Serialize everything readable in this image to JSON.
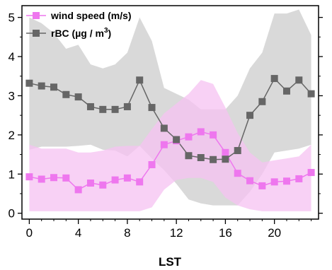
{
  "chart_data": {
    "type": "line",
    "xlabel": "LST",
    "ylabel": "",
    "xlim": [
      -0.6,
      23.6
    ],
    "ylim": [
      -0.15,
      5.3
    ],
    "x_ticks": [
      0,
      4,
      8,
      12,
      16,
      20
    ],
    "y_ticks": [
      0,
      1,
      2,
      3,
      4,
      5
    ],
    "grid": false,
    "legend_position": "top-left",
    "x": [
      0,
      1,
      2,
      3,
      4,
      5,
      6,
      7,
      8,
      9,
      10,
      11,
      12,
      13,
      14,
      15,
      16,
      17,
      18,
      19,
      20,
      21,
      22,
      23
    ],
    "series": [
      {
        "name": "wind speed (m/s)",
        "legend_main": "wind speed (m/s)",
        "legend_sup": "",
        "color": "#ee77ee",
        "band_color": "#f6c2f2",
        "values": [
          0.93,
          0.87,
          0.91,
          0.9,
          0.6,
          0.77,
          0.72,
          0.85,
          0.9,
          0.8,
          1.24,
          1.75,
          1.85,
          1.95,
          2.08,
          2.0,
          1.55,
          1.02,
          0.83,
          0.7,
          0.8,
          0.82,
          0.88,
          1.04
        ],
        "upper": [
          1.75,
          1.65,
          1.65,
          1.65,
          1.55,
          1.55,
          1.6,
          1.7,
          1.72,
          1.72,
          2.15,
          2.55,
          2.8,
          3.05,
          3.4,
          3.3,
          2.7,
          2.05,
          1.55,
          1.3,
          1.35,
          1.4,
          1.45,
          1.75
        ],
        "lower": [
          0.05,
          0.05,
          0.05,
          0.05,
          0.05,
          0.05,
          0.05,
          0.05,
          0.05,
          0.05,
          0.15,
          0.6,
          0.85,
          0.9,
          0.9,
          0.8,
          0.4,
          0.2,
          0.1,
          0.05,
          0.05,
          0.05,
          0.05,
          0.05
        ]
      },
      {
        "name": "rBC (µg / m3)",
        "legend_main": "rBC (µg / m",
        "legend_sup": "3",
        "legend_close": ")",
        "color": "#666666",
        "band_color": "#d0d0d0",
        "values": [
          3.32,
          3.25,
          3.22,
          3.03,
          2.97,
          2.72,
          2.65,
          2.65,
          2.72,
          3.4,
          2.7,
          2.17,
          1.88,
          1.47,
          1.42,
          1.37,
          1.38,
          1.6,
          2.5,
          2.85,
          3.44,
          3.12,
          3.4,
          3.05
        ],
        "upper": [
          5.0,
          4.85,
          4.6,
          4.2,
          4.3,
          3.8,
          3.7,
          3.8,
          4.1,
          5.0,
          4.4,
          3.2,
          3.05,
          2.9,
          2.65,
          2.65,
          2.65,
          3.0,
          3.7,
          4.1,
          5.1,
          5.1,
          5.2,
          4.55
        ],
        "lower": [
          1.62,
          1.7,
          1.7,
          1.7,
          1.72,
          1.75,
          1.62,
          1.6,
          1.45,
          1.72,
          1.4,
          1.1,
          0.75,
          0.35,
          0.25,
          0.2,
          0.2,
          0.2,
          0.55,
          1.0,
          1.55,
          1.6,
          1.65,
          1.75
        ]
      }
    ]
  }
}
